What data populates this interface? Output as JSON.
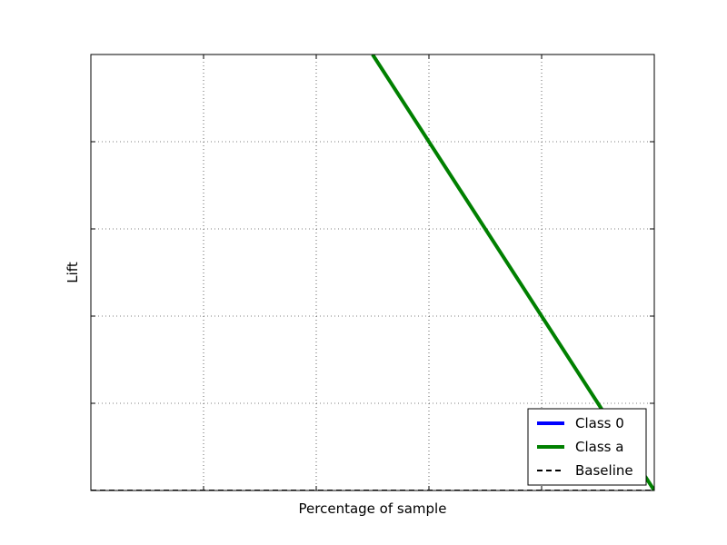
{
  "chart_data": {
    "type": "line",
    "title": "",
    "xlabel": "Percentage of sample",
    "ylabel": "Lift",
    "xlim": [
      0,
      1
    ],
    "ylim": [
      0,
      1
    ],
    "x_ticks": [
      0,
      0.2,
      0.4,
      0.6,
      0.8,
      1.0
    ],
    "y_ticks": [
      0,
      0.2,
      0.4,
      0.6,
      0.8,
      1.0
    ],
    "tick_labels_visible": false,
    "grid": true,
    "legend_position": "bottom-right",
    "series": [
      {
        "name": "Class 0",
        "color": "#0000ff",
        "style": "solid",
        "x": [],
        "y": []
      },
      {
        "name": "Class a",
        "color": "#008000",
        "style": "solid",
        "x": [
          0.5,
          1.0
        ],
        "y": [
          1.0,
          0.0
        ]
      },
      {
        "name": "Baseline",
        "color": "#000000",
        "style": "dashed",
        "x": [
          0.0,
          1.0
        ],
        "y": [
          0.0,
          0.0
        ]
      }
    ]
  }
}
